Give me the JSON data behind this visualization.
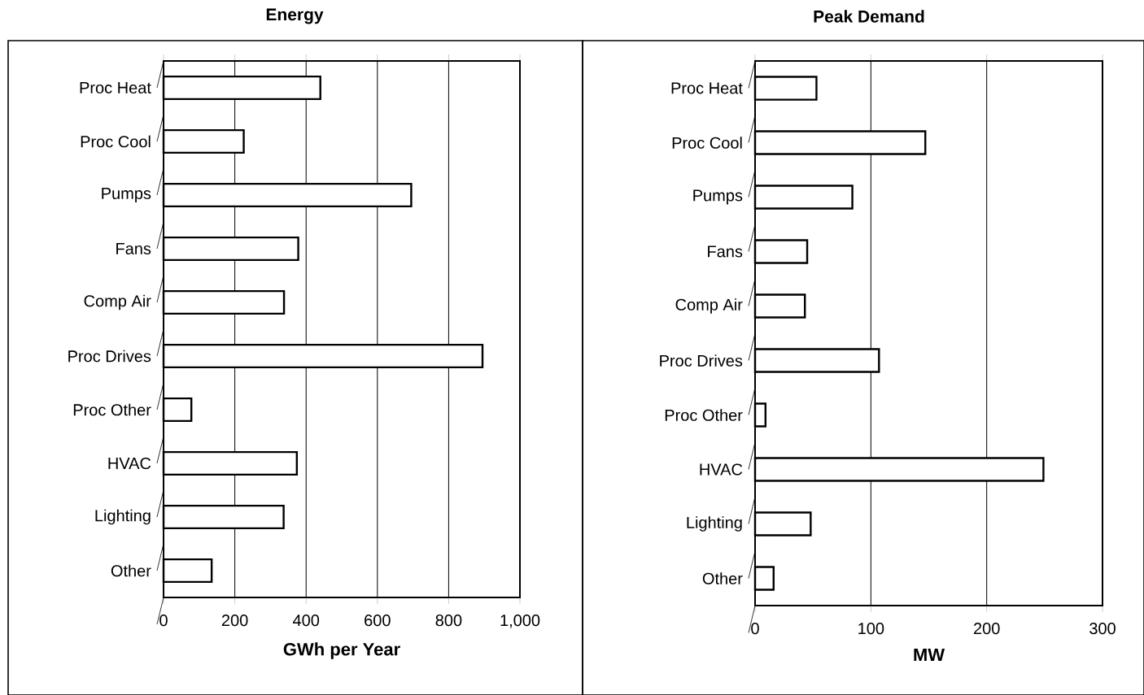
{
  "chart_data": [
    {
      "type": "bar",
      "orientation": "horizontal",
      "title": "Energy",
      "xlabel": "GWh per Year",
      "categories": [
        "Proc Heat",
        "Proc Cool",
        "Pumps",
        "Fans",
        "Comp Air",
        "Proc Drives",
        "Proc Other",
        "HVAC",
        "Lighting",
        "Other"
      ],
      "values": [
        440,
        225,
        695,
        378,
        338,
        895,
        78,
        374,
        337,
        135
      ],
      "color": "#ffffff",
      "xlim": [
        0,
        1000
      ],
      "xticks": [
        0,
        200,
        400,
        600,
        800,
        {
          "value": 1000,
          "label": "1,000"
        }
      ],
      "grid": "x"
    },
    {
      "type": "bar",
      "orientation": "horizontal",
      "title": "Peak Demand",
      "xlabel": "MW",
      "categories": [
        "Proc Heat",
        "Proc Cool",
        "Pumps",
        "Fans",
        "Comp Air",
        "Proc Drives",
        "Proc Other",
        "HVAC",
        "Lighting",
        "Other"
      ],
      "values": [
        53,
        147,
        84,
        45,
        43,
        107,
        9,
        249,
        48,
        16
      ],
      "color": "#ffffff",
      "xlim": [
        0,
        300
      ],
      "xticks": [
        0,
        100,
        200,
        300
      ],
      "grid": "x"
    }
  ]
}
